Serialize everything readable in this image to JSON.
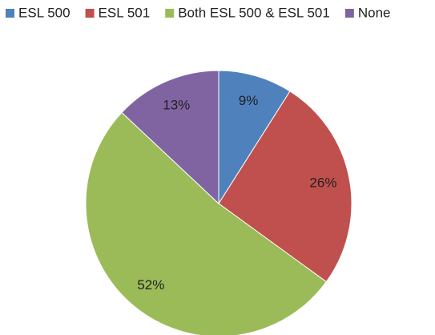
{
  "chart_data": {
    "type": "pie",
    "categories": [
      "ESL 500",
      "ESL 501",
      "Both ESL 500 & ESL 501",
      "None"
    ],
    "values": [
      9,
      26,
      52,
      13
    ],
    "value_labels": [
      "9%",
      "26%",
      "52%",
      "13%"
    ],
    "colors": [
      "#4f81bd",
      "#c0504d",
      "#9bbb59",
      "#8064a2"
    ],
    "legend": "top"
  }
}
